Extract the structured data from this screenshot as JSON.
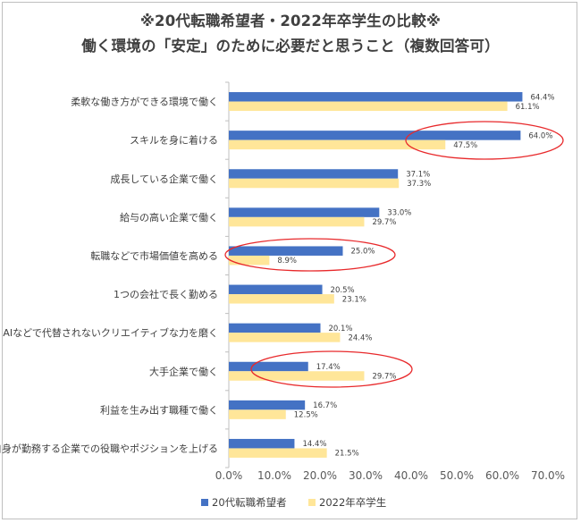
{
  "chart_data": {
    "type": "bar",
    "orientation": "horizontal",
    "title": "※20代転職希望者・2022年卒学生の比較※",
    "subtitle": "働く環境の「安定」のために必要だと思うこと（複数回答可）",
    "categories": [
      "柔軟な働き方ができる環境で働く",
      "スキルを身に着ける",
      "成長している企業で働く",
      "給与の高い企業で働く",
      "転職などで市場価値を高める",
      "1つの会社で長く勤める",
      "AIなどで代替されないクリエイティブな力を磨く",
      "大手企業で働く",
      "利益を生み出す職種で働く",
      "自身が勤務する企業での役職やポジションを上げる"
    ],
    "series": [
      {
        "name": "20代転職希望者",
        "color": "#4472C4",
        "values": [
          64.4,
          64.0,
          37.1,
          33.0,
          25.0,
          20.5,
          20.1,
          17.4,
          16.7,
          14.4
        ],
        "labels": [
          "64.4%",
          "64.0%",
          "37.1%",
          "33.0%",
          "25.0%",
          "20.5%",
          "20.1%",
          "17.4%",
          "16.7%",
          "14.4%"
        ]
      },
      {
        "name": "2022年卒学生",
        "color": "#FFE699",
        "values": [
          61.1,
          47.5,
          37.3,
          29.7,
          8.9,
          23.1,
          24.4,
          29.7,
          12.5,
          21.5
        ],
        "labels": [
          "61.1%",
          "47.5%",
          "37.3%",
          "29.7%",
          "8.9%",
          "23.1%",
          "24.4%",
          "29.7%",
          "12.5%",
          "21.5%"
        ]
      }
    ],
    "xlim": [
      0,
      70
    ],
    "ticks": [
      0,
      10,
      20,
      30,
      40,
      50,
      60,
      70
    ],
    "tick_labels": [
      "0.0%",
      "10.0%",
      "20.0%",
      "30.0%",
      "40.0%",
      "50.0%",
      "60.0%",
      "70.0%"
    ],
    "grid": false,
    "legend_position": "bottom",
    "annotations": [
      {
        "shape": "ellipse",
        "color": "#E8292B",
        "highlights_category": "スキルを身に着ける"
      },
      {
        "shape": "ellipse",
        "color": "#E8292B",
        "highlights_category": "転職などで市場価値を高める"
      },
      {
        "shape": "ellipse",
        "color": "#E8292B",
        "highlights_category": "大手企業で働く"
      }
    ]
  }
}
